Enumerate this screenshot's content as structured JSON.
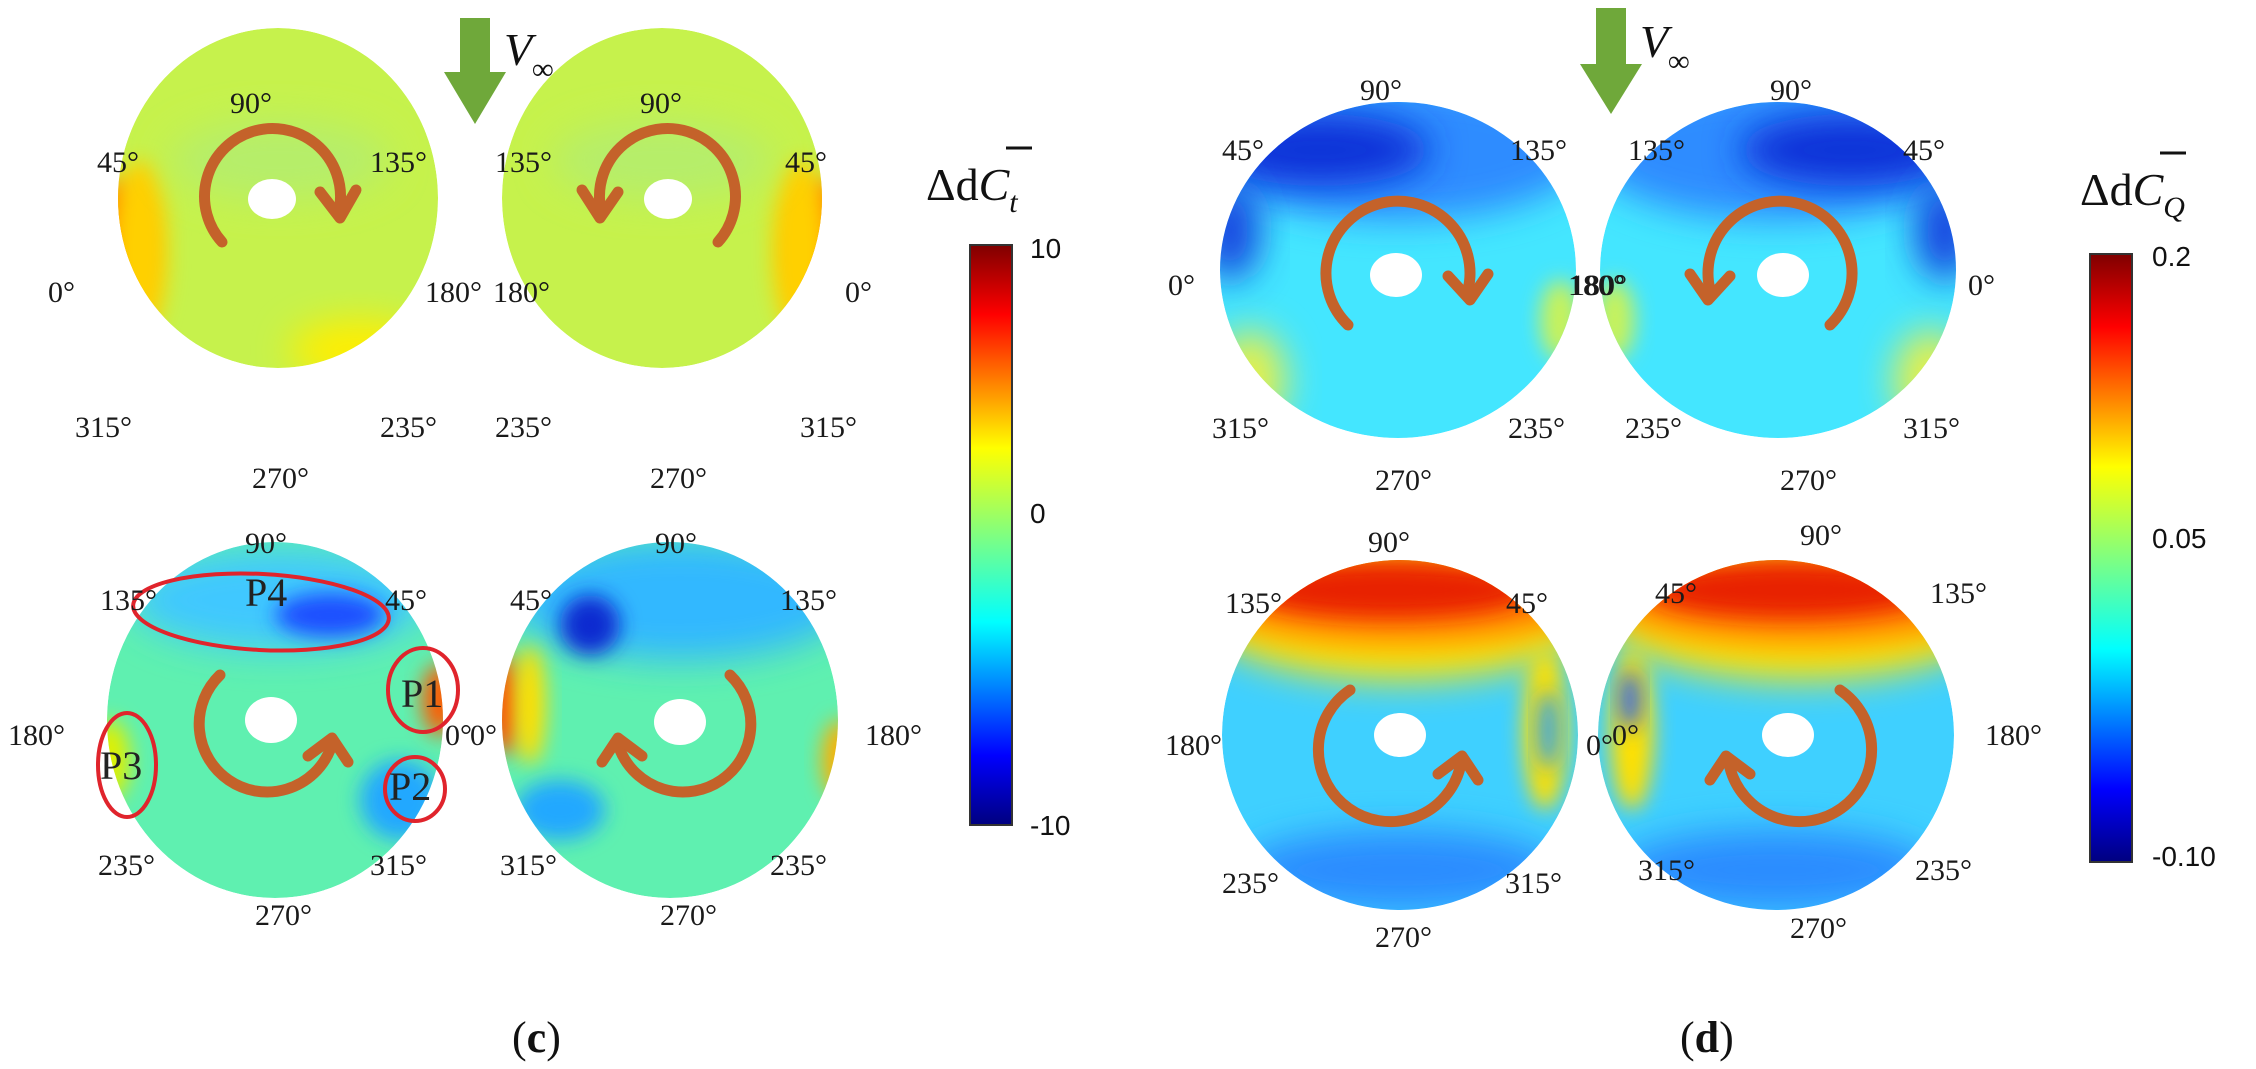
{
  "panel_c": {
    "caption": "(c)",
    "freestream": {
      "symbol": "V",
      "subscript": "∞"
    },
    "colorbar": {
      "title_delta": "Δd",
      "title_var": "C",
      "title_sub": "t",
      "ticks": [
        "10",
        "0",
        "-10"
      ]
    },
    "disks": [
      {
        "angles": {
          "top": "90°",
          "ul": "45°",
          "ur": "135°",
          "left": "0°",
          "right": "180°",
          "ll": "315°",
          "lr": "235°",
          "bottom": "270°"
        },
        "rotation": "clockwise"
      },
      {
        "angles": {
          "top": "90°",
          "ul": "135°",
          "ur": "45°",
          "left": "180°",
          "right": "0°",
          "ll": "235°",
          "lr": "315°",
          "bottom": "270°"
        },
        "rotation": "counterclockwise"
      },
      {
        "angles": {
          "top": "90°",
          "ul": "135°",
          "ur": "45°",
          "left": "180°",
          "right": "0°",
          "ll": "235°",
          "lr": "315°",
          "bottom": "270°"
        },
        "rotation": "counterclockwise"
      },
      {
        "angles": {
          "top": "90°",
          "ul": "45°",
          "ur": "135°",
          "left": "0°",
          "right": "180°",
          "ll": "315°",
          "lr": "235°",
          "bottom": "270°"
        },
        "rotation": "clockwise"
      }
    ],
    "regions": [
      "P1",
      "P2",
      "P3",
      "P4"
    ]
  },
  "panel_d": {
    "caption": "(d)",
    "freestream": {
      "symbol": "V",
      "subscript": "∞"
    },
    "colorbar": {
      "title_delta": "Δd",
      "title_var": "C",
      "title_sub": "Q",
      "ticks": [
        "0.2",
        "0.05",
        "-0.10"
      ]
    },
    "disks": [
      {
        "angles": {
          "top": "90°",
          "ul": "45°",
          "ur": "135°",
          "left": "0°",
          "right": "180°",
          "ll": "315°",
          "lr": "235°",
          "bottom": "270°"
        },
        "rotation": "clockwise"
      },
      {
        "angles": {
          "top": "90°",
          "ul": "135°",
          "ur": "45°",
          "left": "180°",
          "right": "0°",
          "ll": "235°",
          "lr": "315°",
          "bottom": "270°"
        },
        "rotation": "counterclockwise"
      },
      {
        "angles": {
          "top": "90°",
          "ul": "135°",
          "ur": "45°",
          "left": "180°",
          "right": "0°",
          "ll": "235°",
          "lr": "315°",
          "bottom": "270°"
        },
        "rotation": "counterclockwise"
      },
      {
        "angles": {
          "top": "90°",
          "ul": "45°",
          "ur": "135°",
          "left": "0°",
          "right": "180°",
          "ll": "315°",
          "lr": "235°",
          "bottom": "270°"
        },
        "rotation": "clockwise"
      }
    ]
  },
  "colors": {
    "arrow_green": "#6fa83a",
    "rotation_arrow": "#c4622a",
    "region_outline": "#e0242c"
  }
}
